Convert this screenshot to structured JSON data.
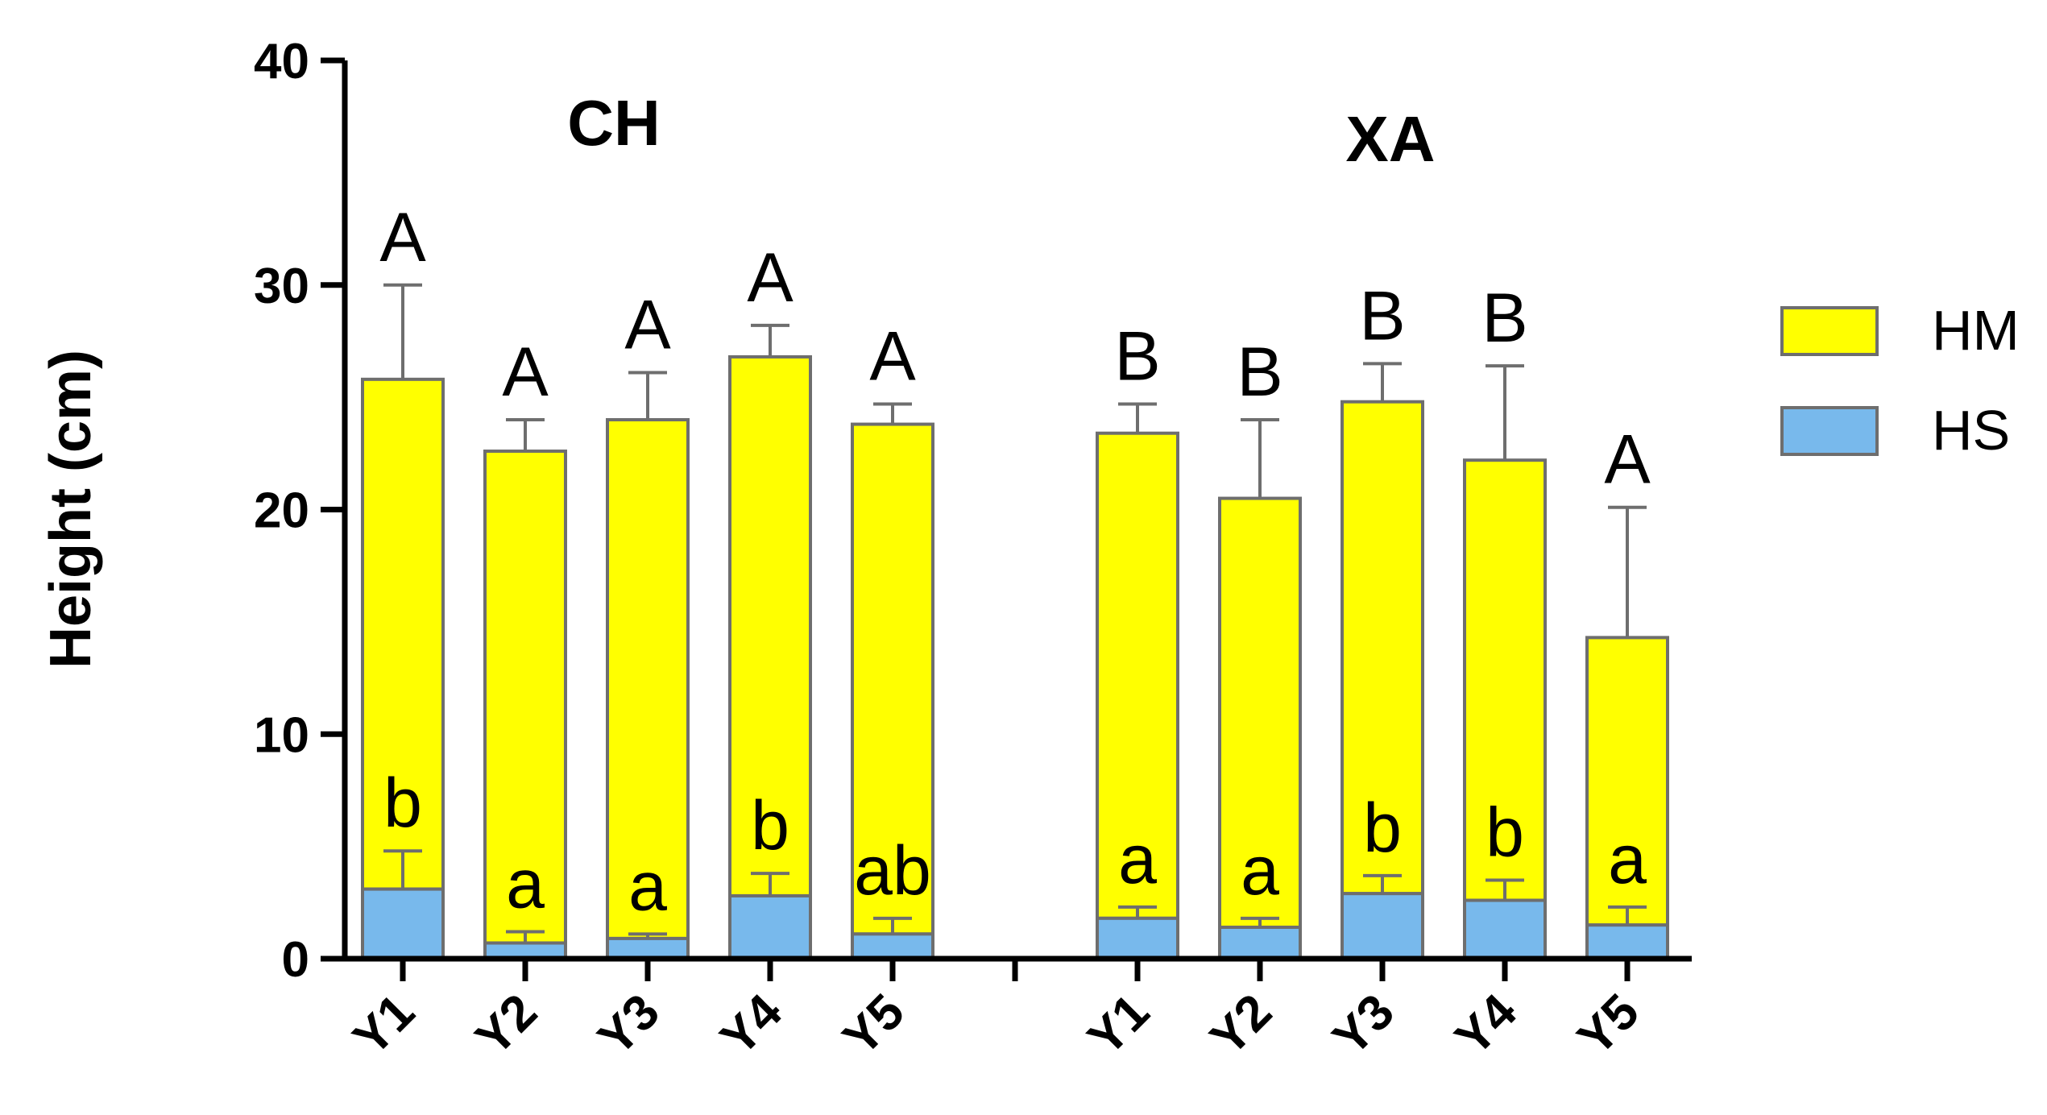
{
  "chart_data": {
    "type": "bar",
    "stacked": true,
    "ylabel": "Height (cm)",
    "xlabel": "",
    "ylim": [
      0,
      40
    ],
    "yticks": [
      0,
      10,
      20,
      30,
      40
    ],
    "grid": false,
    "legend_position": "right",
    "groups": [
      {
        "title": "CH",
        "categories": [
          "Y1",
          "Y2",
          "Y3",
          "Y4",
          "Y5"
        ],
        "HS": [
          3.1,
          0.7,
          0.9,
          2.8,
          1.1
        ],
        "HS_err": [
          1.7,
          0.5,
          0.2,
          1.0,
          0.7
        ],
        "total": [
          25.8,
          22.6,
          24.0,
          26.8,
          23.8
        ],
        "total_err": [
          4.2,
          1.4,
          2.1,
          1.4,
          0.9
        ],
        "upper_letters": [
          "A",
          "A",
          "A",
          "A",
          "A"
        ],
        "lower_letters": [
          "b",
          "a",
          "a",
          "b",
          "ab"
        ]
      },
      {
        "title": "XA",
        "categories": [
          "Y1",
          "Y2",
          "Y3",
          "Y4",
          "Y5"
        ],
        "HS": [
          1.8,
          1.4,
          2.9,
          2.6,
          1.5
        ],
        "HS_err": [
          0.5,
          0.4,
          0.8,
          0.9,
          0.8
        ],
        "total": [
          23.4,
          20.5,
          24.8,
          22.2,
          14.3
        ],
        "total_err": [
          1.3,
          3.5,
          1.7,
          4.2,
          5.8
        ],
        "upper_letters": [
          "B",
          "B",
          "B",
          "B",
          "A"
        ],
        "lower_letters": [
          "a",
          "a",
          "b",
          "b",
          "a"
        ]
      }
    ],
    "series": [
      {
        "name": "HM",
        "color": "#ffff00"
      },
      {
        "name": "HS",
        "color": "#78b9ec"
      }
    ]
  }
}
